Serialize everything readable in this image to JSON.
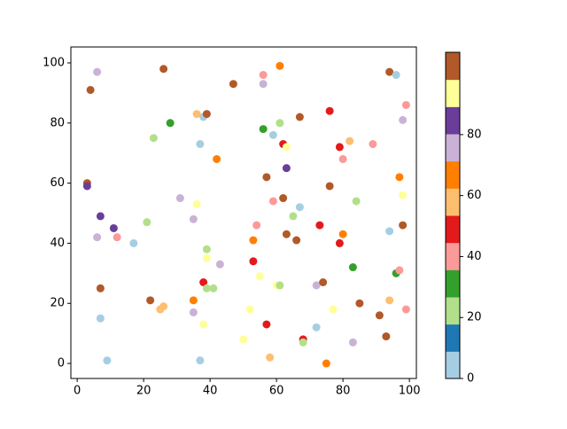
{
  "chart_data": {
    "type": "scatter",
    "xlim": [
      -1.9,
      102.1
    ],
    "ylim": [
      -5.0,
      105.3
    ],
    "xticks": [
      0,
      20,
      40,
      60,
      80,
      100
    ],
    "yticks": [
      0,
      20,
      40,
      60,
      80,
      100
    ],
    "colormap": [
      "#a6cee3",
      "#1f78b4",
      "#b2df8a",
      "#33a02c",
      "#fb9a99",
      "#e31a1c",
      "#fdbf6f",
      "#ff7f00",
      "#cab2d6",
      "#6a3d9a",
      "#ffff99",
      "#b15928"
    ],
    "clim": [
      0,
      107
    ],
    "cticks": [
      0,
      20,
      40,
      60,
      80
    ],
    "x": [
      6,
      4,
      26,
      47,
      56,
      56,
      61,
      94,
      96,
      99,
      98,
      28,
      36,
      38,
      39,
      23,
      37,
      42,
      56,
      59,
      61,
      62,
      63,
      67,
      76,
      79,
      82,
      80,
      89,
      3,
      3,
      63,
      57,
      97,
      98,
      76,
      31,
      36,
      59,
      62,
      67,
      84,
      7,
      11,
      12,
      6,
      17,
      21,
      35,
      54,
      65,
      63,
      66,
      73,
      79,
      80,
      94,
      98,
      39,
      39,
      43,
      53,
      53,
      83,
      96,
      97,
      7,
      7,
      9,
      22,
      25,
      26,
      35,
      35,
      38,
      39,
      41,
      38,
      37,
      50,
      52,
      55,
      60,
      61,
      57,
      58,
      68,
      68,
      72,
      72,
      74,
      77,
      75,
      83,
      85,
      91,
      93,
      94,
      99
    ],
    "y": [
      97,
      91,
      98,
      93,
      96,
      93,
      99,
      97,
      96,
      86,
      81,
      80,
      83,
      82,
      83,
      75,
      73,
      68,
      78,
      76,
      80,
      73,
      72,
      82,
      84,
      72,
      74,
      68,
      73,
      60,
      59,
      65,
      62,
      62,
      56,
      59,
      55,
      53,
      54,
      55,
      52,
      54,
      49,
      45,
      42,
      42,
      40,
      47,
      48,
      46,
      49,
      43,
      41,
      46,
      40,
      43,
      44,
      46,
      38,
      35,
      33,
      41,
      34,
      32,
      30,
      31,
      25,
      15,
      1,
      21,
      18,
      19,
      21,
      17,
      27,
      25,
      25,
      13,
      1,
      8,
      18,
      29,
      26,
      26,
      13,
      2,
      8,
      7,
      12,
      26,
      27,
      18,
      0,
      7,
      20,
      16,
      9,
      21,
      18
    ],
    "c": [
      76,
      103,
      103,
      103,
      40,
      76,
      67,
      103,
      4.5,
      40,
      76,
      31,
      58,
      4.5,
      103,
      22,
      4.5,
      67,
      31,
      4.5,
      22,
      49,
      94,
      103,
      49,
      49,
      58,
      40,
      40,
      103,
      85,
      85,
      103,
      67,
      94,
      103,
      76,
      94,
      40,
      103,
      4.5,
      22,
      85,
      85,
      40,
      76,
      4.5,
      22,
      76,
      40,
      22,
      103,
      103,
      49,
      49,
      67,
      4.5,
      103,
      22,
      94,
      76,
      67,
      49,
      31,
      31,
      40,
      103,
      4.5,
      4.5,
      103,
      58,
      58,
      67,
      76,
      49,
      22,
      22,
      94,
      4.5,
      94,
      94,
      94,
      94,
      22,
      49,
      58,
      49,
      22,
      4.5,
      76,
      103,
      94,
      67,
      76,
      103,
      103,
      103,
      58,
      40
    ]
  }
}
